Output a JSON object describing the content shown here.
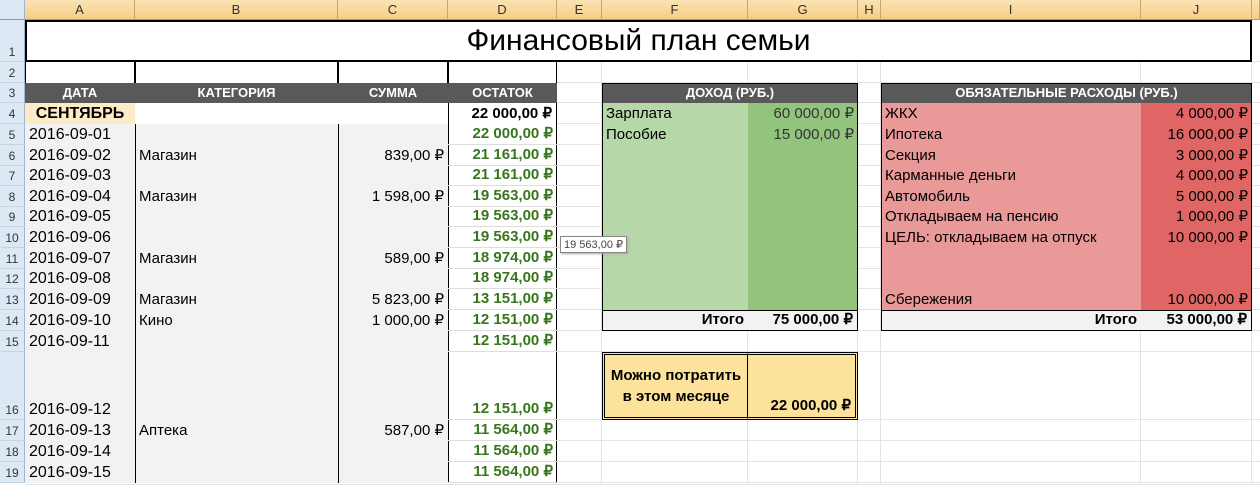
{
  "columns": [
    "A",
    "B",
    "C",
    "D",
    "E",
    "F",
    "G",
    "H",
    "I",
    "J"
  ],
  "rows": [
    "1",
    "2",
    "3",
    "4",
    "5",
    "6",
    "7",
    "8",
    "9",
    "10",
    "11",
    "12",
    "13",
    "14",
    "15",
    "16",
    "17",
    "18",
    "19"
  ],
  "title": "Финансовый план семьи",
  "ledger": {
    "headers": {
      "date": "ДАТА",
      "category": "КАТЕГОРИЯ",
      "amount": "СУММА",
      "balance": "ОСТАТОК"
    },
    "month": "СЕНТЯБРЬ",
    "opening_balance": "22 000,00 ₽",
    "entries": [
      {
        "date": "2016-09-01",
        "category": "",
        "amount": "",
        "balance": "22 000,00 ₽"
      },
      {
        "date": "2016-09-02",
        "category": "Магазин",
        "amount": "839,00 ₽",
        "balance": "21 161,00 ₽"
      },
      {
        "date": "2016-09-03",
        "category": "",
        "amount": "",
        "balance": "21 161,00 ₽"
      },
      {
        "date": "2016-09-04",
        "category": "Магазин",
        "amount": "1 598,00 ₽",
        "balance": "19 563,00 ₽"
      },
      {
        "date": "2016-09-05",
        "category": "",
        "amount": "",
        "balance": "19 563,00 ₽"
      },
      {
        "date": "2016-09-06",
        "category": "",
        "amount": "",
        "balance": "19 563,00 ₽"
      },
      {
        "date": "2016-09-07",
        "category": "Магазин",
        "amount": "589,00 ₽",
        "balance": "18 974,00 ₽"
      },
      {
        "date": "2016-09-08",
        "category": "",
        "amount": "",
        "balance": "18 974,00 ₽"
      },
      {
        "date": "2016-09-09",
        "category": "Магазин",
        "amount": "5 823,00 ₽",
        "balance": "13 151,00 ₽"
      },
      {
        "date": "2016-09-10",
        "category": "Кино",
        "amount": "1 000,00 ₽",
        "balance": "12 151,00 ₽"
      },
      {
        "date": "2016-09-11",
        "category": "",
        "amount": "",
        "balance": "12 151,00 ₽"
      },
      {
        "date": "2016-09-12",
        "category": "",
        "amount": "",
        "balance": "12 151,00 ₽"
      },
      {
        "date": "2016-09-13",
        "category": "Аптека",
        "amount": "587,00 ₽",
        "balance": "11 564,00 ₽"
      },
      {
        "date": "2016-09-14",
        "category": "",
        "amount": "",
        "balance": "11 564,00 ₽"
      },
      {
        "date": "2016-09-15",
        "category": "",
        "amount": "",
        "balance": "11 564,00 ₽"
      }
    ]
  },
  "income": {
    "header": "ДОХОД (РУБ.)",
    "items": [
      {
        "label": "Зарплата",
        "value": "60 000,00 ₽"
      },
      {
        "label": "Пособие",
        "value": "15 000,00 ₽"
      }
    ],
    "total_label": "Итого",
    "total": "75 000,00 ₽"
  },
  "expenses": {
    "header": "ОБЯЗАТЕЛЬНЫЕ РАСХОДЫ (РУБ.)",
    "items": [
      {
        "label": "ЖКХ",
        "value": "4 000,00 ₽"
      },
      {
        "label": "Ипотека",
        "value": "16 000,00 ₽"
      },
      {
        "label": "Секция",
        "value": "3 000,00 ₽"
      },
      {
        "label": "Карманные деньги",
        "value": "4 000,00 ₽"
      },
      {
        "label": "Автомобиль",
        "value": "5 000,00 ₽"
      },
      {
        "label": "Откладываем на пенсию",
        "value": "1 000,00 ₽"
      },
      {
        "label": "ЦЕЛЬ: откладываем на отпуск",
        "value": "10 000,00 ₽"
      }
    ],
    "savings": {
      "label": "Сбережения",
      "value": "10 000,00 ₽"
    },
    "total_label": "Итого",
    "total": "53 000,00 ₽"
  },
  "spendable": {
    "label": "Можно потратить в этом месяце",
    "value": "22 000,00 ₽"
  },
  "tooltip": "19 563,00 ₽",
  "colors": {
    "header": "#595959",
    "income_light": "#b6d7a8",
    "income_dark": "#93c47d",
    "expense_light": "#ea9999",
    "expense_dark": "#e06666",
    "spendable": "#fde29b",
    "month": "#fdebc8",
    "ledger_bg": "#f2f2f2",
    "balance_text": "#38761d"
  }
}
